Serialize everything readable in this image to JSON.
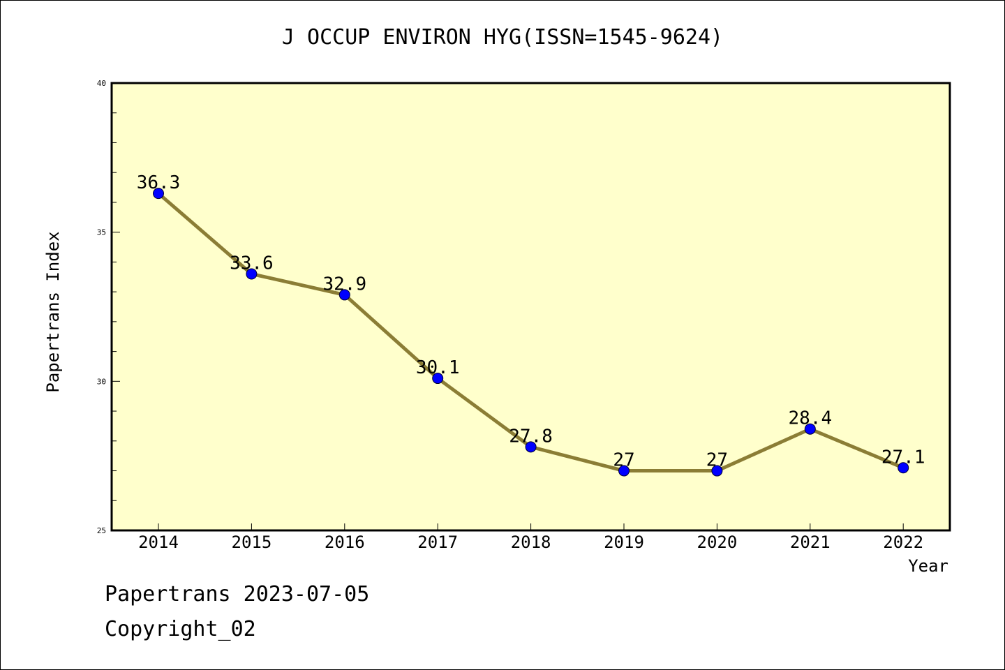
{
  "title": "J OCCUP ENVIRON HYG(ISSN=1545-9624)",
  "footer": {
    "date_line": "Papertrans 2023-07-05",
    "copyright_line": "Copyright_02"
  },
  "colors": {
    "plot_background": "#ffffcc",
    "line": "#8b7d35",
    "marker": "#0000ff",
    "axis": "#000000"
  },
  "chart_data": {
    "type": "line",
    "title": "J OCCUP ENVIRON HYG(ISSN=1545-9624)",
    "xlabel": "Year",
    "ylabel": "Papertrans Index",
    "categories": [
      "2014",
      "2015",
      "2016",
      "2017",
      "2018",
      "2019",
      "2020",
      "2021",
      "2022"
    ],
    "values": [
      36.3,
      33.6,
      32.9,
      30.1,
      27.8,
      27,
      27,
      28.4,
      27.1
    ],
    "data_labels": [
      "36.3",
      "33.6",
      "32.9",
      "30.1",
      "27.8",
      "27",
      "27",
      "28.4",
      "27.1"
    ],
    "ylim": [
      25,
      40
    ],
    "y_ticks": [
      25,
      30,
      35,
      40
    ],
    "y_tick_labels": [
      "25",
      "30",
      "35",
      "40"
    ],
    "y_minor_step": 1,
    "grid": false,
    "legend": "none"
  }
}
